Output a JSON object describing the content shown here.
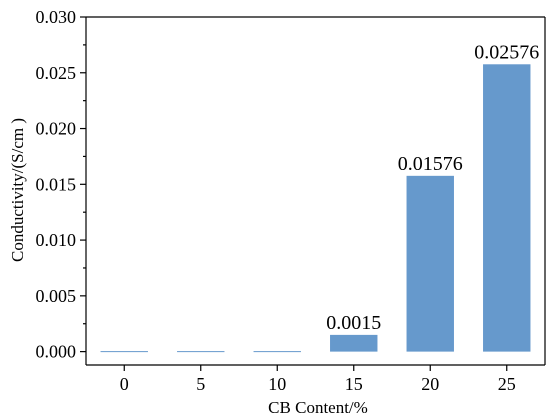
{
  "chart_data": {
    "type": "bar",
    "categories": [
      "0",
      "5",
      "10",
      "15",
      "20",
      "25"
    ],
    "values": [
      0,
      0,
      0,
      0.0015,
      0.01576,
      0.02576
    ],
    "data_labels": [
      "",
      "",
      "",
      "0.0015",
      "0.01576",
      "0.02576"
    ],
    "title": "",
    "xlabel": "CB  Content/%",
    "ylabel": "Conductivity/(S/cm )",
    "ylim": [
      -0.0012,
      0.03
    ],
    "yticks": [
      0.0,
      0.005,
      0.01,
      0.015,
      0.02,
      0.025,
      0.03
    ],
    "ytick_labels": [
      "0.000",
      "0.005",
      "0.010",
      "0.015",
      "0.020",
      "0.025",
      "0.030"
    ],
    "bar_color": "#6699cc",
    "grid": false,
    "legend": "none"
  }
}
